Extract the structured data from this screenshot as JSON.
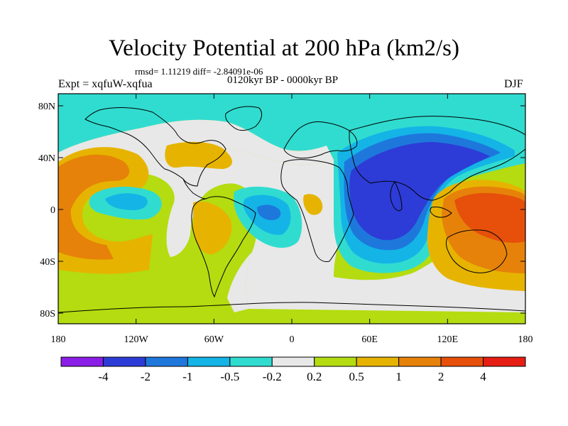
{
  "title": "Velocity Potential at 200 hPa (km2/s)",
  "stats": "rmsd= 1.11219 diff= -2.84091e-06",
  "period": "0120kyr BP - 0000kyr BP",
  "experiment": "Expt = xqfuW-xqfua",
  "season": "DJF",
  "map": {
    "lon_ticks": [
      "180",
      "120W",
      "60W",
      "0",
      "60E",
      "120E",
      "180"
    ],
    "lat_ticks": [
      "80N",
      "40N",
      "0",
      "40S",
      "80S"
    ]
  },
  "colorbar": {
    "colors": [
      "#8a1ee6",
      "#2d3cd6",
      "#1e78dc",
      "#14b4e6",
      "#30dcd0",
      "#e8e8e8",
      "#b4dc10",
      "#e6b400",
      "#e6820a",
      "#e6500a",
      "#e61e14"
    ],
    "labels": [
      "-4",
      "-2",
      "-1",
      "-0.5",
      "-0.2",
      "0.2",
      "0.5",
      "1",
      "2",
      "4"
    ]
  }
}
